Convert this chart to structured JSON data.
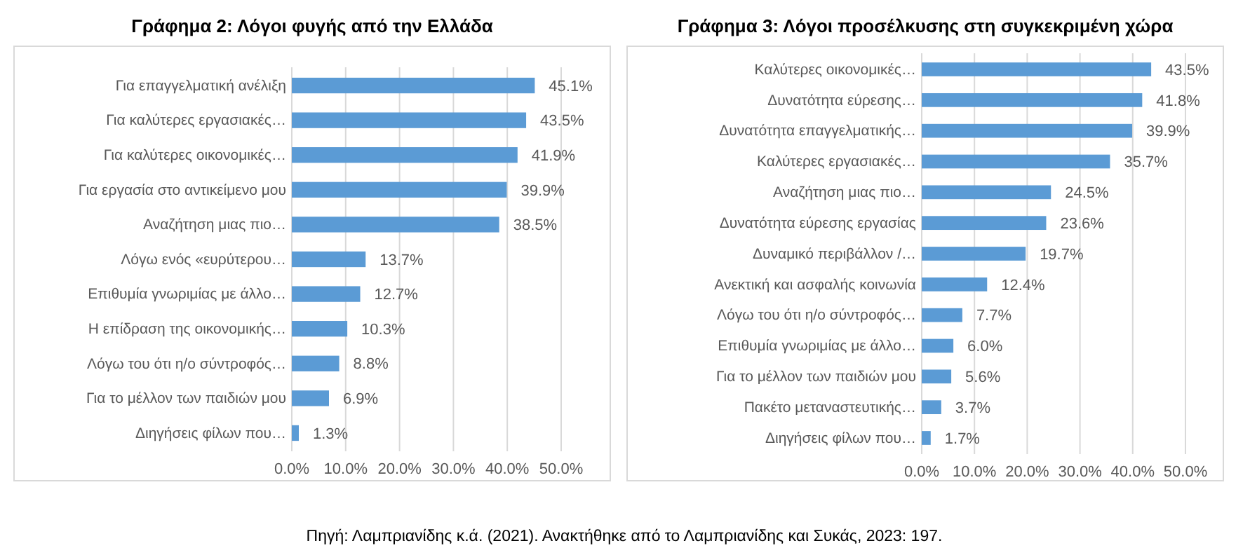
{
  "chart_data": [
    {
      "type": "bar",
      "orientation": "horizontal",
      "title": "Γράφημα 2: Λόγοι φυγής από την Ελλάδα",
      "categories": [
        "Για επαγγελματική ανέλιξη",
        "Για καλύτερες εργασιακές…",
        "Για καλύτερες οικονομικές…",
        "Για εργασία στο αντικείμενο μου",
        "Αναζήτηση μιας πιο…",
        "Λόγω ενός «ευρύτερου…",
        "Επιθυμία γνωριμίας με άλλο…",
        "Η επίδραση της οικονομικής…",
        "Λόγω του ότι η/ο σύντροφός…",
        "Για το μέλλον των παιδιών μου",
        "Διηγήσεις φίλων που…"
      ],
      "values": [
        45.1,
        43.5,
        41.9,
        39.9,
        38.5,
        13.7,
        12.7,
        10.3,
        8.8,
        6.9,
        1.3
      ],
      "value_labels": [
        "45.1%",
        "43.5%",
        "41.9%",
        "39.9%",
        "38.5%",
        "13.7%",
        "12.7%",
        "10.3%",
        "8.8%",
        "6.9%",
        "1.3%"
      ],
      "color": "#5b9bd5",
      "xlim": [
        0,
        50
      ],
      "xticks": [
        {
          "value": 0,
          "label": "0.0%"
        },
        {
          "value": 10,
          "label": "10.0%"
        },
        {
          "value": 20,
          "label": "20.0%"
        },
        {
          "value": 30,
          "label": "30.0%"
        },
        {
          "value": 40,
          "label": "40.0%"
        },
        {
          "value": 50,
          "label": "50.0%"
        }
      ],
      "grid": "x"
    },
    {
      "type": "bar",
      "orientation": "horizontal",
      "title": "Γράφημα 3: Λόγοι προσέλκυσης στη συγκεκριμένη χώρα",
      "categories": [
        "Καλύτερες οικονομικές…",
        "Δυνατότητα εύρεσης…",
        "Δυνατότητα  επαγγελματικής…",
        "Καλύτερες εργασιακές…",
        "Αναζήτηση μιας πιο…",
        "Δυνατότητα εύρεσης εργασίας",
        "Δυναμικό  περιβάλλον /…",
        "Ανεκτική και ασφαλής κοινωνία",
        "Λόγω του ότι η/ο σύντροφός…",
        "Επιθυμία γνωριμίας με άλλο…",
        "Για το μέλλον των παιδιών μου",
        "Πακέτο μεταναστευτικής…",
        "Διηγήσεις φίλων που…"
      ],
      "values": [
        43.5,
        41.8,
        39.9,
        35.7,
        24.5,
        23.6,
        19.7,
        12.4,
        7.7,
        6.0,
        5.6,
        3.7,
        1.7
      ],
      "value_labels": [
        "43.5%",
        "41.8%",
        "39.9%",
        "35.7%",
        "24.5%",
        "23.6%",
        "19.7%",
        "12.4%",
        "7.7%",
        "6.0%",
        "5.6%",
        "3.7%",
        "1.7%"
      ],
      "color": "#5b9bd5",
      "xlim": [
        0,
        50
      ],
      "xticks": [
        {
          "value": 0,
          "label": "0.0%"
        },
        {
          "value": 10,
          "label": "10.0%"
        },
        {
          "value": 20,
          "label": "20.0%"
        },
        {
          "value": 30,
          "label": "30.0%"
        },
        {
          "value": 40,
          "label": "40.0%"
        },
        {
          "value": 50,
          "label": "50.0%"
        }
      ],
      "grid": "x",
      "annotations": [
        "Πηγή: Λαμπριανίδης κ.ά. (2021). Ανακτήθηκε από το Λαμπριανίδης και Συκάς, 2023: 197."
      ]
    }
  ]
}
